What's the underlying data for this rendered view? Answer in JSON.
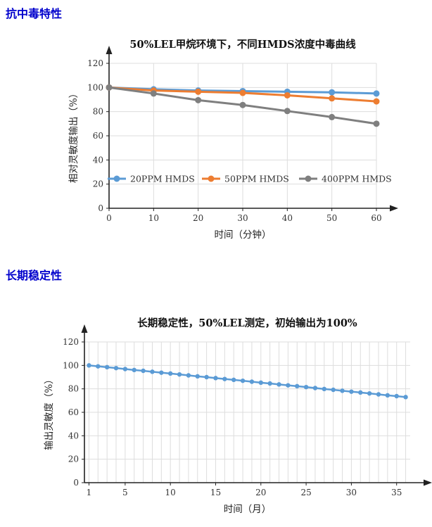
{
  "accent_color": "#0000CC",
  "grid_color": "#dddddd",
  "axis_color": "#222222",
  "sections": [
    {
      "title": "抗中毒特性"
    },
    {
      "title": "长期稳定性"
    }
  ],
  "chart_data": [
    {
      "id": "poison-chart",
      "type": "line",
      "title": "50%LEL甲烷环境下，不同HMDS浓度中毒曲线",
      "xlabel": "时间（分钟）",
      "ylabel": "相对灵敏度输出（%）",
      "x": [
        0,
        10,
        20,
        30,
        40,
        50,
        60
      ],
      "xticks": [
        0,
        10,
        20,
        30,
        40,
        50,
        60
      ],
      "yticks": [
        0,
        20,
        40,
        60,
        80,
        100,
        120
      ],
      "xlim": [
        0,
        60
      ],
      "ylim": [
        0,
        120
      ],
      "grid": true,
      "legend_position": "inside-bottom",
      "series": [
        {
          "name": "20PPM HMDS",
          "color": "#5B9BD5",
          "values": [
            100,
            98.5,
            97.5,
            97,
            96.5,
            96,
            95
          ]
        },
        {
          "name": "50PPM HMDS",
          "color": "#ED7D31",
          "values": [
            100,
            97.5,
            96.5,
            95.5,
            93.5,
            91,
            88.5
          ]
        },
        {
          "name": "400PPM HMDS",
          "color": "#7F7F7F",
          "values": [
            100,
            95,
            89.5,
            85.5,
            80.5,
            75.5,
            70
          ]
        }
      ]
    },
    {
      "id": "stability-chart",
      "type": "line",
      "title": "长期稳定性，50%LEL测定，初始输出为100%",
      "xlabel": "时间（月）",
      "ylabel": "输出灵敏度（%）",
      "x": [
        1,
        2,
        3,
        4,
        5,
        6,
        7,
        8,
        9,
        10,
        11,
        12,
        13,
        14,
        15,
        16,
        17,
        18,
        19,
        20,
        21,
        22,
        23,
        24,
        25,
        26,
        27,
        28,
        29,
        30,
        31,
        32,
        33,
        34,
        35,
        36
      ],
      "xticks": [
        1,
        5,
        10,
        15,
        20,
        25,
        30,
        35
      ],
      "yticks": [
        0,
        20,
        40,
        60,
        80,
        100,
        120
      ],
      "xlim": [
        0.5,
        36.5
      ],
      "ylim": [
        0,
        120
      ],
      "grid": true,
      "xgrid": "integer",
      "legend_position": "none",
      "series": [
        {
          "name": "输出灵敏度",
          "color": "#5B9BD5",
          "values": [
            100,
            99.2,
            98.5,
            97.7,
            96.9,
            96.1,
            95.4,
            94.6,
            93.8,
            93.1,
            92.3,
            91.5,
            90.7,
            90,
            89.2,
            88.4,
            87.7,
            86.9,
            86.1,
            85.3,
            84.6,
            83.8,
            83,
            82.3,
            81.5,
            80.7,
            79.9,
            79.2,
            78.4,
            77.6,
            76.9,
            76.1,
            75.3,
            74.5,
            73.8,
            73
          ]
        }
      ]
    }
  ]
}
